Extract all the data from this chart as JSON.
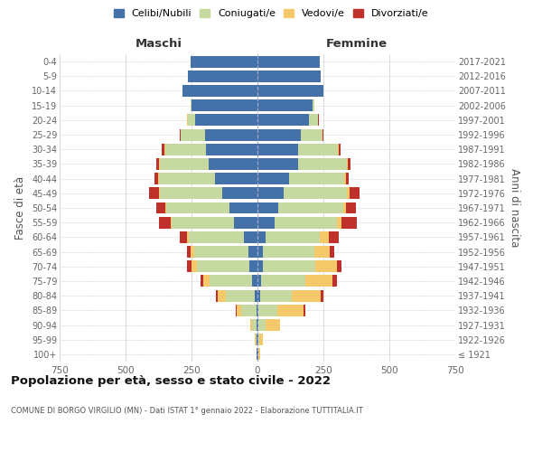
{
  "age_groups": [
    "100+",
    "95-99",
    "90-94",
    "85-89",
    "80-84",
    "75-79",
    "70-74",
    "65-69",
    "60-64",
    "55-59",
    "50-54",
    "45-49",
    "40-44",
    "35-39",
    "30-34",
    "25-29",
    "20-24",
    "15-19",
    "10-14",
    "5-9",
    "0-4"
  ],
  "birth_years": [
    "≤ 1921",
    "1922-1926",
    "1927-1931",
    "1932-1936",
    "1937-1941",
    "1942-1946",
    "1947-1951",
    "1952-1956",
    "1957-1961",
    "1962-1966",
    "1967-1971",
    "1972-1976",
    "1977-1981",
    "1982-1986",
    "1987-1991",
    "1992-1996",
    "1997-2001",
    "2002-2006",
    "2007-2011",
    "2012-2016",
    "2017-2021"
  ],
  "maschi": {
    "celibi": [
      2,
      2,
      3,
      5,
      10,
      20,
      30,
      35,
      50,
      90,
      105,
      135,
      160,
      185,
      195,
      200,
      235,
      250,
      285,
      265,
      255
    ],
    "coniugati": [
      2,
      5,
      18,
      55,
      110,
      160,
      200,
      205,
      210,
      235,
      240,
      235,
      215,
      185,
      155,
      90,
      30,
      5,
      0,
      0,
      0
    ],
    "vedovi": [
      0,
      2,
      5,
      18,
      30,
      25,
      20,
      15,
      8,
      5,
      3,
      2,
      2,
      2,
      2,
      0,
      3,
      0,
      0,
      0,
      0
    ],
    "divorziati": [
      0,
      0,
      2,
      5,
      8,
      12,
      18,
      12,
      28,
      45,
      35,
      38,
      12,
      12,
      10,
      5,
      0,
      0,
      0,
      0,
      0
    ]
  },
  "femmine": {
    "nubili": [
      2,
      2,
      5,
      5,
      10,
      15,
      20,
      20,
      30,
      65,
      80,
      100,
      120,
      155,
      155,
      165,
      195,
      210,
      250,
      240,
      235
    ],
    "coniugate": [
      2,
      5,
      25,
      70,
      120,
      165,
      200,
      195,
      205,
      235,
      245,
      240,
      210,
      185,
      150,
      80,
      35,
      5,
      0,
      0,
      0
    ],
    "vedove": [
      5,
      15,
      55,
      100,
      110,
      105,
      80,
      60,
      35,
      20,
      10,
      8,
      5,
      3,
      2,
      0,
      0,
      0,
      0,
      0,
      0
    ],
    "divorziate": [
      0,
      0,
      2,
      8,
      10,
      18,
      20,
      15,
      38,
      55,
      38,
      38,
      12,
      10,
      8,
      5,
      2,
      0,
      0,
      0,
      0
    ]
  },
  "colors": {
    "celibi": "#4472a8",
    "coniugati": "#c5d9a0",
    "vedovi": "#f5c96a",
    "divorziati": "#c0302a"
  },
  "xlim": 750,
  "title": "Popolazione per età, sesso e stato civile - 2022",
  "subtitle": "COMUNE DI BORGO VIRGILIO (MN) - Dati ISTAT 1° gennaio 2022 - Elaborazione TUTTITALIA.IT",
  "ylabel_left": "Fasce di età",
  "ylabel_right": "Anni di nascita",
  "xlabel_maschi": "Maschi",
  "xlabel_femmine": "Femmine",
  "legend_labels": [
    "Celibi/Nubili",
    "Coniugati/e",
    "Vedovi/e",
    "Divorziati/e"
  ],
  "bg_color": "#ffffff",
  "grid_color": "#cccccc"
}
